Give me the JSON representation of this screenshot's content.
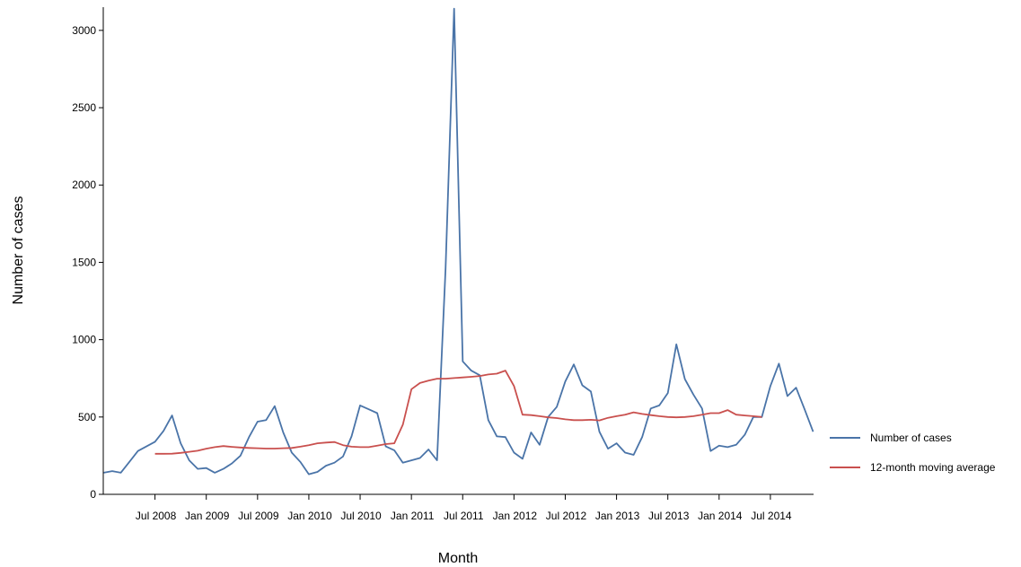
{
  "chart_data": {
    "type": "line",
    "xlabel": "Month",
    "ylabel": "Number of cases",
    "ylim": [
      0,
      3150
    ],
    "yticks": [
      0,
      500,
      1000,
      1500,
      2000,
      2500,
      3000
    ],
    "x_start": "2008-01",
    "x_end": "2014-12",
    "xticks": [
      {
        "month": "2008-07",
        "label": "Jul 2008"
      },
      {
        "month": "2009-01",
        "label": "Jan 2009"
      },
      {
        "month": "2009-07",
        "label": "Jul 2009"
      },
      {
        "month": "2010-01",
        "label": "Jan 2010"
      },
      {
        "month": "2010-07",
        "label": "Jul 2010"
      },
      {
        "month": "2011-01",
        "label": "Jan 2011"
      },
      {
        "month": "2011-07",
        "label": "Jul 2011"
      },
      {
        "month": "2012-01",
        "label": "Jan 2012"
      },
      {
        "month": "2012-07",
        "label": "Jul 2012"
      },
      {
        "month": "2013-01",
        "label": "Jan 2013"
      },
      {
        "month": "2013-07",
        "label": "Jul 2013"
      },
      {
        "month": "2014-01",
        "label": "Jan 2014"
      },
      {
        "month": "2014-07",
        "label": "Jul 2014"
      }
    ],
    "grid": false,
    "legend_position": "right",
    "series": [
      {
        "name": "Number of cases",
        "color": "#4a74a8",
        "x": [
          "2008-01",
          "2008-02",
          "2008-03",
          "2008-04",
          "2008-05",
          "2008-06",
          "2008-07",
          "2008-08",
          "2008-09",
          "2008-10",
          "2008-11",
          "2008-12",
          "2009-01",
          "2009-02",
          "2009-03",
          "2009-04",
          "2009-05",
          "2009-06",
          "2009-07",
          "2009-08",
          "2009-09",
          "2009-10",
          "2009-11",
          "2009-12",
          "2010-01",
          "2010-02",
          "2010-03",
          "2010-04",
          "2010-05",
          "2010-06",
          "2010-07",
          "2010-08",
          "2010-09",
          "2010-10",
          "2010-11",
          "2010-12",
          "2011-01",
          "2011-02",
          "2011-03",
          "2011-04",
          "2011-05",
          "2011-06",
          "2011-07",
          "2011-08",
          "2011-09",
          "2011-10",
          "2011-11",
          "2011-12",
          "2012-01",
          "2012-02",
          "2012-03",
          "2012-04",
          "2012-05",
          "2012-06",
          "2012-07",
          "2012-08",
          "2012-09",
          "2012-10",
          "2012-11",
          "2012-12",
          "2013-01",
          "2013-02",
          "2013-03",
          "2013-04",
          "2013-05",
          "2013-06",
          "2013-07",
          "2013-08",
          "2013-09",
          "2013-10",
          "2013-11",
          "2013-12",
          "2014-01",
          "2014-02",
          "2014-03",
          "2014-04",
          "2014-05",
          "2014-06",
          "2014-07",
          "2014-08",
          "2014-09",
          "2014-10",
          "2014-11",
          "2014-12"
        ],
        "values": [
          140,
          150,
          140,
          210,
          280,
          310,
          340,
          410,
          510,
          330,
          220,
          165,
          170,
          140,
          165,
          200,
          250,
          370,
          470,
          480,
          570,
          400,
          270,
          210,
          130,
          145,
          185,
          205,
          245,
          375,
          575,
          550,
          525,
          310,
          285,
          205,
          220,
          235,
          290,
          220,
          1460,
          3140,
          860,
          800,
          770,
          480,
          375,
          370,
          270,
          230,
          400,
          320,
          500,
          565,
          730,
          840,
          705,
          665,
          405,
          295,
          330,
          270,
          255,
          370,
          555,
          575,
          655,
          970,
          745,
          645,
          555,
          280,
          315,
          305,
          320,
          385,
          500,
          500,
          700,
          845,
          635,
          690,
          550,
          405
        ]
      },
      {
        "name": "12-month moving average",
        "color": "#c9504e",
        "x": [
          "2008-07",
          "2008-08",
          "2008-09",
          "2008-10",
          "2008-11",
          "2008-12",
          "2009-01",
          "2009-02",
          "2009-03",
          "2009-04",
          "2009-05",
          "2009-06",
          "2009-07",
          "2009-08",
          "2009-09",
          "2009-10",
          "2009-11",
          "2009-12",
          "2010-01",
          "2010-02",
          "2010-03",
          "2010-04",
          "2010-05",
          "2010-06",
          "2010-07",
          "2010-08",
          "2010-09",
          "2010-10",
          "2010-11",
          "2010-12",
          "2011-01",
          "2011-02",
          "2011-03",
          "2011-04",
          "2011-05",
          "2011-06",
          "2011-07",
          "2011-08",
          "2011-09",
          "2011-10",
          "2011-11",
          "2011-12",
          "2012-01",
          "2012-02",
          "2012-03",
          "2012-04",
          "2012-05",
          "2012-06",
          "2012-07",
          "2012-08",
          "2012-09",
          "2012-10",
          "2012-11",
          "2012-12",
          "2013-01",
          "2013-02",
          "2013-03",
          "2013-04",
          "2013-05",
          "2013-06",
          "2013-07",
          "2013-08",
          "2013-09",
          "2013-10",
          "2013-11",
          "2013-12",
          "2014-01",
          "2014-02",
          "2014-03",
          "2014-04",
          "2014-05",
          "2014-06"
        ],
        "values": [
          262,
          262,
          263,
          268,
          275,
          282,
          295,
          305,
          312,
          307,
          303,
          300,
          298,
          296,
          296,
          298,
          300,
          308,
          318,
          330,
          335,
          338,
          318,
          308,
          305,
          305,
          315,
          325,
          330,
          450,
          680,
          720,
          735,
          748,
          748,
          752,
          756,
          760,
          765,
          775,
          780,
          800,
          700,
          515,
          512,
          505,
          498,
          493,
          485,
          480,
          480,
          482,
          478,
          495,
          505,
          515,
          530,
          520,
          512,
          505,
          500,
          498,
          500,
          505,
          515,
          525,
          525,
          545,
          515,
          510,
          505,
          500
        ]
      }
    ]
  }
}
